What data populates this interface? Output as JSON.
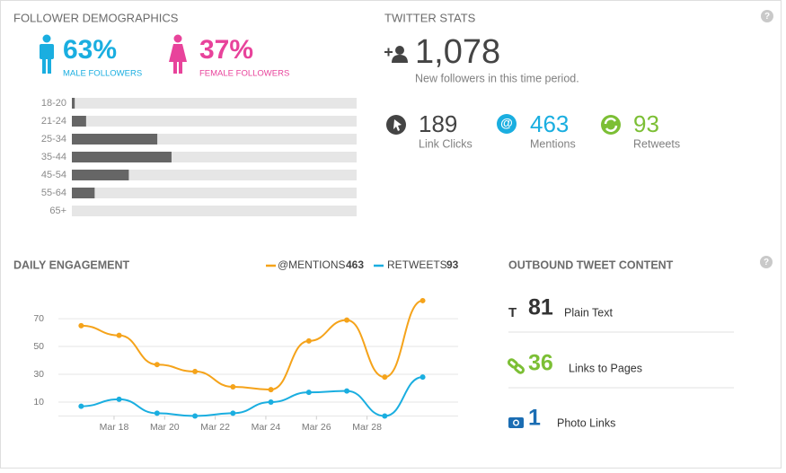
{
  "follower_demographics": {
    "title": "FOLLOWER DEMOGRAPHICS",
    "male": {
      "percent": "63%",
      "label": "MALE FOLLOWERS"
    },
    "female": {
      "percent": "37%",
      "label": "FEMALE FOLLOWERS"
    },
    "age_chart": {
      "type": "bar",
      "categories": [
        "18-20",
        "21-24",
        "25-34",
        "35-44",
        "45-54",
        "55-64",
        "65+"
      ],
      "values": [
        1,
        5,
        30,
        35,
        20,
        8,
        0
      ],
      "xlim": [
        0,
        100
      ],
      "color": "#666666"
    }
  },
  "twitter_stats": {
    "title": "TWITTER STATS",
    "new_followers": {
      "value": "1,078",
      "caption": "New followers in this time period."
    },
    "stats": [
      {
        "value": "189",
        "label": "Link Clicks",
        "color": "#444444"
      },
      {
        "value": "463",
        "label": "Mentions",
        "color": "#1aaee0"
      },
      {
        "value": "93",
        "label": "Retweets",
        "color": "#7cbf35"
      }
    ]
  },
  "chart_data": {
    "type": "line",
    "title": "DAILY ENGAGEMENT",
    "x": [
      16.7,
      18.2,
      19.7,
      21.2,
      22.7,
      24.2,
      25.7,
      27.2,
      28.7,
      30.2
    ],
    "xlim": [
      15.8,
      31.6
    ],
    "xticks": [
      {
        "value": 18,
        "label": "Mar 18"
      },
      {
        "value": 20,
        "label": "Mar 20"
      },
      {
        "value": 22,
        "label": "Mar 22"
      },
      {
        "value": 24,
        "label": "Mar 24"
      },
      {
        "value": 26,
        "label": "Mar 26"
      },
      {
        "value": 28,
        "label": "Mar 28"
      }
    ],
    "ylim": [
      0,
      92
    ],
    "yticks": [
      10,
      30,
      50,
      70
    ],
    "grid": true,
    "series": [
      {
        "name": "@MENTIONS",
        "total": 463,
        "color": "#f5a31a",
        "values": [
          65,
          58,
          37,
          32,
          21,
          19,
          54,
          69,
          28,
          83
        ]
      },
      {
        "name": "RETWEETS",
        "total": 93,
        "color": "#1aaee0",
        "values": [
          7,
          12,
          2,
          0,
          2,
          10,
          17,
          18,
          0,
          28
        ]
      }
    ]
  },
  "outbound": {
    "title": "OUTBOUND TWEET CONTENT",
    "items": [
      {
        "value": "81",
        "label": "Plain Text",
        "color": "#333333"
      },
      {
        "value": "36",
        "label": "Links to Pages",
        "color": "#7cbf35"
      },
      {
        "value": "1",
        "label": "Photo Links",
        "color": "#1b6db3"
      }
    ]
  },
  "help": "?"
}
